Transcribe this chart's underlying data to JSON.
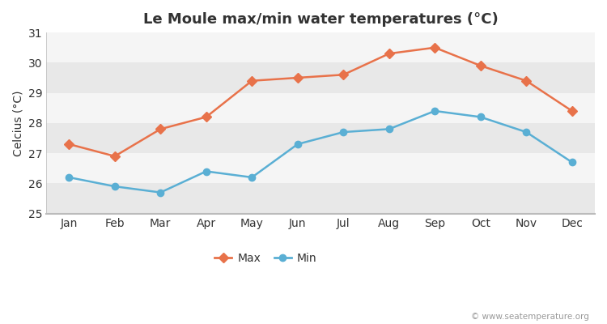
{
  "title": "Le Moule max/min water temperatures (°C)",
  "ylabel": "Celcius (°C)",
  "months": [
    "Jan",
    "Feb",
    "Mar",
    "Apr",
    "May",
    "Jun",
    "Jul",
    "Aug",
    "Sep",
    "Oct",
    "Nov",
    "Dec"
  ],
  "max_temps": [
    27.3,
    26.9,
    27.8,
    28.2,
    29.4,
    29.5,
    29.6,
    30.3,
    30.5,
    29.9,
    29.4,
    28.4
  ],
  "min_temps": [
    26.2,
    25.9,
    25.7,
    26.4,
    26.2,
    27.3,
    27.7,
    27.8,
    28.4,
    28.2,
    27.7,
    26.7
  ],
  "max_color": "#e8724a",
  "min_color": "#5aafd4",
  "fig_bg_color": "#ffffff",
  "plot_bg_color": "#f5f5f5",
  "stripe_color": "#e8e8e8",
  "grid_color": "#ffffff",
  "ylim": [
    25,
    31
  ],
  "yticks": [
    25,
    26,
    27,
    28,
    29,
    30,
    31
  ],
  "legend_labels": [
    "Max",
    "Min"
  ],
  "watermark": "© www.seatemperature.org",
  "title_fontsize": 13,
  "label_fontsize": 10,
  "tick_fontsize": 10
}
